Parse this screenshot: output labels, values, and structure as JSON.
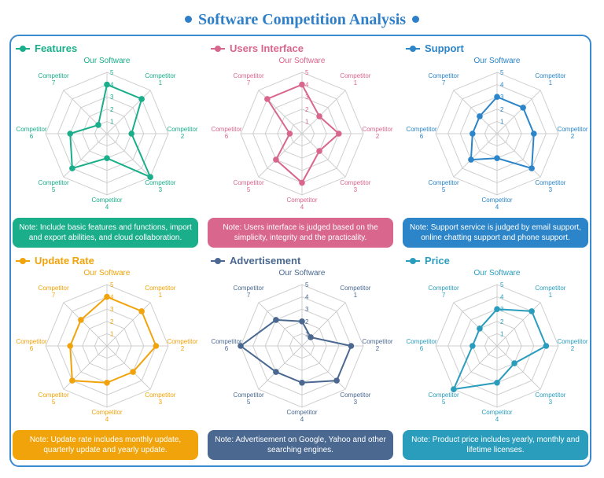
{
  "title": "Software Competition Analysis",
  "chart_data": [
    {
      "type": "radar",
      "title": "Features",
      "color": "#1aae8a",
      "categories": [
        "Our Software",
        "Competitor 1",
        "Competitor 2",
        "Competitor 3",
        "Competitor 4",
        "Competitor 5",
        "Competitor 6",
        "Competitor 7"
      ],
      "values": [
        4,
        4,
        2,
        5,
        2,
        4,
        3,
        1
      ],
      "rlim": [
        0,
        5
      ],
      "ticks": [
        1,
        2,
        3,
        4,
        5
      ],
      "note": "Note: Include basic features and functions, import and export abilities, and cloud collaboration."
    },
    {
      "type": "radar",
      "title": "Users Interface",
      "color": "#d9668c",
      "categories": [
        "Our Software",
        "Competitor 1",
        "Competitor 2",
        "Competitor 3",
        "Competitor 4",
        "Competitor 5",
        "Competitor 6",
        "Competitor 7"
      ],
      "values": [
        4,
        2,
        3,
        2,
        4,
        3,
        1,
        4
      ],
      "rlim": [
        0,
        5
      ],
      "ticks": [
        1,
        2,
        3,
        4,
        5
      ],
      "note": "Note: Users interface is judged based on the simplicity, integrity and the practicality."
    },
    {
      "type": "radar",
      "title": "Support",
      "color": "#2b85c8",
      "categories": [
        "Our Software",
        "Competitor 1",
        "Competitor 2",
        "Competitor 3",
        "Competitor 4",
        "Competitor 5",
        "Competitor 6",
        "Competitor 7"
      ],
      "values": [
        3,
        3,
        3,
        4,
        2,
        3,
        2,
        2
      ],
      "rlim": [
        0,
        5
      ],
      "ticks": [
        1,
        2,
        3,
        4,
        5
      ],
      "note": "Note: Support service is judged by email support, online chatting support and phone support."
    },
    {
      "type": "radar",
      "title": "Update Rate",
      "color": "#f0a30a",
      "categories": [
        "Our Software",
        "Competitor 1",
        "Competitor 2",
        "Competitor 3",
        "Competitor 4",
        "Competitor 5",
        "Competitor 6",
        "Competitor 7"
      ],
      "values": [
        4,
        4,
        4,
        3,
        3,
        4,
        3,
        3
      ],
      "rlim": [
        0,
        5
      ],
      "ticks": [
        1,
        2,
        3,
        4,
        5
      ],
      "note": "Note: Update rate includes monthly update, quarterly update and yearly update."
    },
    {
      "type": "radar",
      "title": "Advertisement",
      "color": "#4a6890",
      "categories": [
        "Our Software",
        "Competitor 1",
        "Competitor 2",
        "Competitor 3",
        "Competitor 4",
        "Competitor 5",
        "Competitor 6",
        "Competitor 7"
      ],
      "values": [
        2,
        1,
        4,
        4,
        3,
        3,
        5,
        3
      ],
      "rlim": [
        0,
        5
      ],
      "ticks": [
        1,
        2,
        3,
        4,
        5
      ],
      "note": "Note: Advertisement on Google, Yahoo and other searching engines."
    },
    {
      "type": "radar",
      "title": "Price",
      "color": "#2a9dbc",
      "categories": [
        "Our Software",
        "Competitor 1",
        "Competitor 2",
        "Competitor 3",
        "Competitor 4",
        "Competitor 5",
        "Competitor 6",
        "Competitor 7"
      ],
      "values": [
        3,
        4,
        4,
        2,
        3,
        5,
        2,
        2
      ],
      "rlim": [
        0,
        5
      ],
      "ticks": [
        1,
        2,
        3,
        4,
        5
      ],
      "note": "Note: Product price includes yearly, monthly and lifetime licenses."
    }
  ]
}
